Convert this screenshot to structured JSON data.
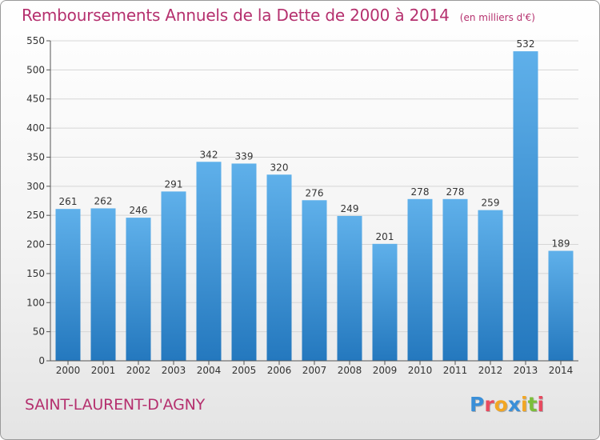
{
  "title": "Remboursements Annuels de la Dette de 2000 à 2014",
  "unit": "(en milliers d'€)",
  "commune": "SAINT-LAURENT-D'AGNY",
  "logo": {
    "text": "Proxiti",
    "letter_colors": [
      "#3a8fd8",
      "#e84a5f",
      "#f2a623",
      "#3a8fd8",
      "#f2a623",
      "#7bbf3a",
      "#e84a5f"
    ]
  },
  "colors": {
    "title": "#b5306e",
    "bar_top": "#5fb0ea",
    "bar_bottom": "#2478be"
  },
  "chart_data": {
    "type": "bar",
    "title": "Remboursements Annuels de la Dette de 2000 à 2014",
    "ylabel": "",
    "xlabel": "",
    "categories": [
      "2000",
      "2001",
      "2002",
      "2003",
      "2004",
      "2005",
      "2006",
      "2007",
      "2008",
      "2009",
      "2010",
      "2011",
      "2012",
      "2013",
      "2014"
    ],
    "values": [
      261,
      262,
      246,
      291,
      342,
      339,
      320,
      276,
      249,
      201,
      278,
      278,
      259,
      532,
      189
    ],
    "ylim": [
      0,
      550
    ],
    "yticks": [
      0,
      50,
      100,
      150,
      200,
      250,
      300,
      350,
      400,
      450,
      500,
      550
    ],
    "grid": true,
    "data_labels": true
  }
}
